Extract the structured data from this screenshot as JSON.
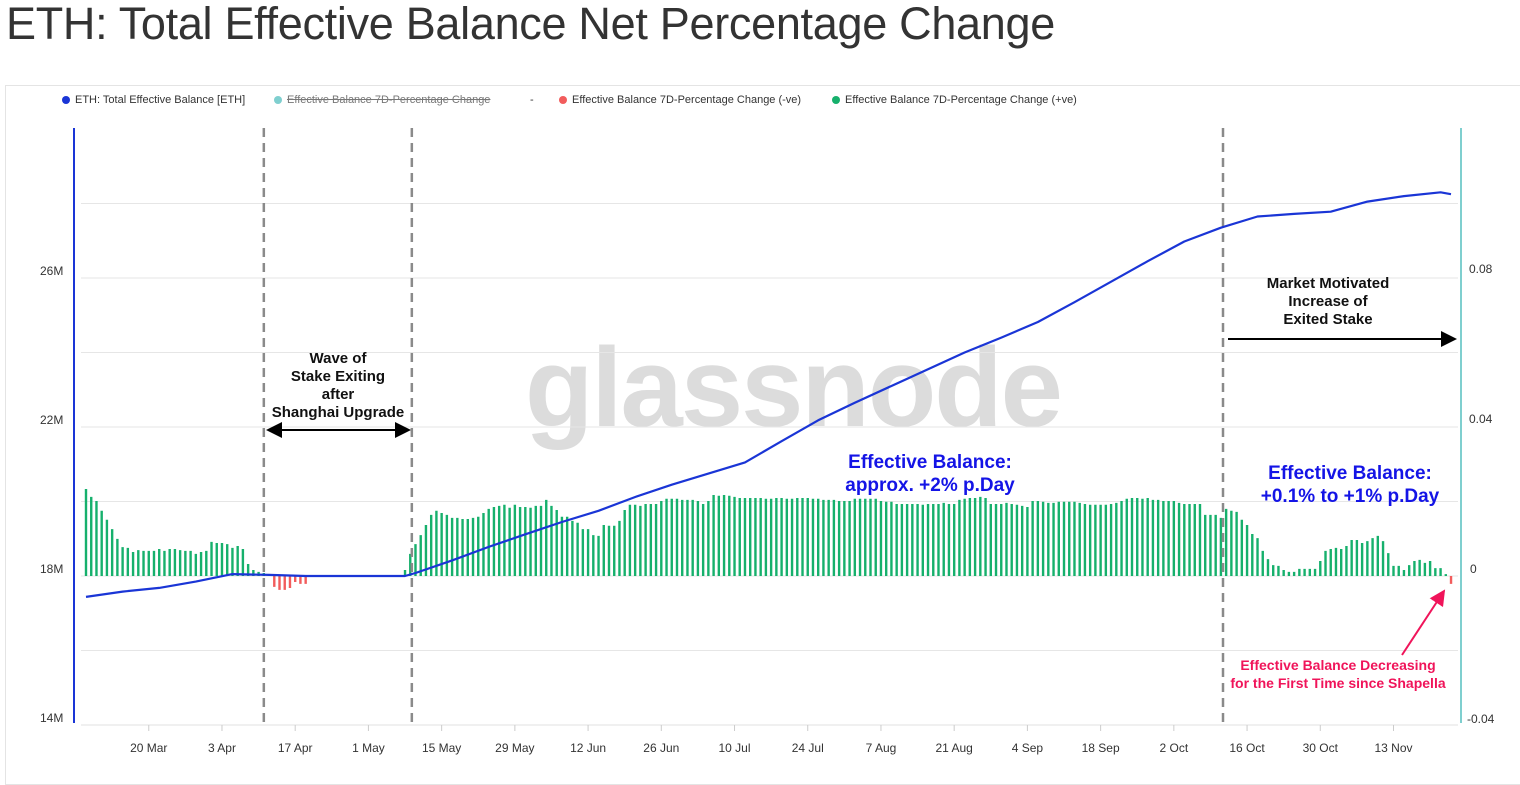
{
  "title": "ETH: Total Effective Balance Net Percentage Change",
  "watermark": "glassnode",
  "legend": [
    {
      "label": "ETH: Total Effective Balance [ETH]",
      "color": "#1a35d6",
      "hidden": false
    },
    {
      "label": "Effective Balance 7D-Percentage Change",
      "color": "#7fcfcf",
      "hidden": true
    },
    {
      "label": "-",
      "color": "",
      "hidden": false
    },
    {
      "label": "Effective Balance 7D-Percentage Change (-ve)",
      "color": "#f25c5c",
      "hidden": false
    },
    {
      "label": "Effective Balance 7D-Percentage Change (+ve)",
      "color": "#16b06c",
      "hidden": false
    }
  ],
  "annotations": {
    "shanghai": [
      "Wave of",
      "Stake Exiting",
      "after",
      "Shanghai Upgrade"
    ],
    "market": [
      "Market Motivated",
      "Increase of",
      "Exited Stake"
    ],
    "mid_blue": [
      "Effective Balance:",
      "approx. +2% p.Day"
    ],
    "right_blue": [
      "Effective Balance:",
      "+0.1% to +1% p.Day"
    ],
    "red": [
      "Effective Balance Decreasing",
      "for the First Time since Shapella"
    ]
  },
  "colors": {
    "line": "#1a35d6",
    "pos": "#16b06c",
    "neg": "#f25c5c",
    "left_axis": "#1a35d6",
    "right_axis": "#7fcfcf",
    "marker": "#8a8a8a"
  },
  "chart_data": {
    "type": "bar+line",
    "title": "ETH: Total Effective Balance Net Percentage Change",
    "x_start_date": "8 Mar",
    "x_unit": "day index since start",
    "x_ticks": [
      {
        "label": "20 Mar",
        "day": 12
      },
      {
        "label": "3 Apr",
        "day": 26
      },
      {
        "label": "17 Apr",
        "day": 40
      },
      {
        "label": "1 May",
        "day": 54
      },
      {
        "label": "15 May",
        "day": 68
      },
      {
        "label": "29 May",
        "day": 82
      },
      {
        "label": "12 Jun",
        "day": 96
      },
      {
        "label": "26 Jun",
        "day": 110
      },
      {
        "label": "10 Jul",
        "day": 124
      },
      {
        "label": "24 Jul",
        "day": 138
      },
      {
        "label": "7 Aug",
        "day": 152
      },
      {
        "label": "21 Aug",
        "day": 166
      },
      {
        "label": "4 Sep",
        "day": 180
      },
      {
        "label": "18 Sep",
        "day": 194
      },
      {
        "label": "2 Oct",
        "day": 208
      },
      {
        "label": "16 Oct",
        "day": 222
      },
      {
        "label": "30 Oct",
        "day": 236
      },
      {
        "label": "13 Nov",
        "day": 250
      }
    ],
    "left_axis": {
      "label": "ETH",
      "range": [
        14,
        30
      ],
      "unit": "M",
      "ticks": [
        "14M",
        "18M",
        "22M",
        "26M"
      ],
      "tick_values": [
        14,
        18,
        22,
        26
      ]
    },
    "right_axis": {
      "range": [
        -0.04,
        0.12
      ],
      "ticks": [
        "-0.04",
        "0",
        "0.04",
        "0.08"
      ],
      "tick_values": [
        -0.04,
        0,
        0.04,
        0.08
      ]
    },
    "vertical_markers_day": [
      34,
      62.3,
      217.4
    ],
    "balance_series": {
      "name": "ETH: Total Effective Balance [ETH]",
      "unit": "M ETH",
      "points": [
        [
          0,
          17.44
        ],
        [
          7,
          17.58
        ],
        [
          14,
          17.68
        ],
        [
          21,
          17.85
        ],
        [
          28,
          18.05
        ],
        [
          35,
          18.03
        ],
        [
          42,
          18.0
        ],
        [
          49,
          18.0
        ],
        [
          56,
          18.0
        ],
        [
          61,
          18.0
        ],
        [
          63,
          18.08
        ],
        [
          70,
          18.42
        ],
        [
          77,
          18.78
        ],
        [
          84,
          19.12
        ],
        [
          91,
          19.45
        ],
        [
          98,
          19.75
        ],
        [
          105,
          20.12
        ],
        [
          112,
          20.45
        ],
        [
          119,
          20.75
        ],
        [
          126,
          21.05
        ],
        [
          133,
          21.62
        ],
        [
          140,
          22.18
        ],
        [
          147,
          22.65
        ],
        [
          154,
          23.1
        ],
        [
          161,
          23.55
        ],
        [
          168,
          24.0
        ],
        [
          175,
          24.4
        ],
        [
          182,
          24.82
        ],
        [
          189,
          25.35
        ],
        [
          196,
          25.9
        ],
        [
          203,
          26.45
        ],
        [
          210,
          26.98
        ],
        [
          217,
          27.35
        ],
        [
          224,
          27.65
        ],
        [
          231,
          27.72
        ],
        [
          238,
          27.78
        ],
        [
          245,
          28.05
        ],
        [
          252,
          28.2
        ],
        [
          259,
          28.3
        ],
        [
          261,
          28.25
        ]
      ]
    },
    "pct_change_series": {
      "name": "Effective Balance 7D-Percentage Change",
      "values": [
        0.0232,
        0.0211,
        0.02,
        0.0174,
        0.015,
        0.0125,
        0.0099,
        0.0077,
        0.0075,
        0.0064,
        0.0069,
        0.0067,
        0.0067,
        0.0067,
        0.0072,
        0.0067,
        0.0072,
        0.0072,
        0.0069,
        0.0067,
        0.0067,
        0.0059,
        0.0064,
        0.0067,
        0.0091,
        0.0088,
        0.0088,
        0.0085,
        0.0075,
        0.008,
        0.0072,
        0.0032,
        0.0016,
        0.0011,
        0.0008,
        0.0005,
        -0.0029,
        -0.0037,
        -0.0037,
        -0.0032,
        -0.0016,
        -0.0021,
        -0.0021,
        0,
        0,
        0,
        0,
        0,
        0,
        0,
        0,
        0,
        0,
        0,
        0,
        0,
        0,
        0,
        0,
        0,
        0,
        0.0016,
        0.0059,
        0.0085,
        0.0109,
        0.0136,
        0.0163,
        0.0174,
        0.0168,
        0.0163,
        0.0155,
        0.0155,
        0.0152,
        0.0152,
        0.0155,
        0.0158,
        0.0168,
        0.0179,
        0.0184,
        0.0187,
        0.019,
        0.0182,
        0.019,
        0.0184,
        0.0184,
        0.0182,
        0.0187,
        0.0187,
        0.0203,
        0.0187,
        0.0176,
        0.0158,
        0.0158,
        0.0147,
        0.0142,
        0.0125,
        0.0125,
        0.0109,
        0.0107,
        0.0136,
        0.0134,
        0.0134,
        0.0147,
        0.0176,
        0.019,
        0.019,
        0.0187,
        0.0192,
        0.0192,
        0.0192,
        0.02,
        0.0206,
        0.0206,
        0.0206,
        0.0203,
        0.0203,
        0.0203,
        0.02,
        0.0192,
        0.02,
        0.0216,
        0.0214,
        0.0216,
        0.0214,
        0.0211,
        0.0208,
        0.0208,
        0.0208,
        0.0208,
        0.0208,
        0.0206,
        0.0206,
        0.0208,
        0.0208,
        0.0206,
        0.0206,
        0.0208,
        0.0208,
        0.0208,
        0.0206,
        0.0206,
        0.0203,
        0.0203,
        0.0203,
        0.02,
        0.02,
        0.02,
        0.0206,
        0.0206,
        0.0206,
        0.0206,
        0.0206,
        0.02,
        0.0198,
        0.0198,
        0.0192,
        0.0192,
        0.0192,
        0.0192,
        0.0192,
        0.019,
        0.0192,
        0.0192,
        0.0192,
        0.0195,
        0.0192,
        0.0192,
        0.0203,
        0.0206,
        0.0208,
        0.0208,
        0.0211,
        0.0208,
        0.0192,
        0.0192,
        0.0192,
        0.0195,
        0.0192,
        0.019,
        0.0187,
        0.0184,
        0.02,
        0.02,
        0.0198,
        0.0195,
        0.0195,
        0.0198,
        0.0198,
        0.0198,
        0.0198,
        0.0195,
        0.0192,
        0.019,
        0.019,
        0.019,
        0.019,
        0.0192,
        0.0195,
        0.02,
        0.0206,
        0.0208,
        0.0208,
        0.0206,
        0.0208,
        0.0203,
        0.0203,
        0.02,
        0.02,
        0.02,
        0.0195,
        0.0192,
        0.0192,
        0.0192,
        0.0192,
        0.0163,
        0.0163,
        0.0163,
        0.0155,
        0.0179,
        0.0174,
        0.0171,
        0.015,
        0.0136,
        0.0112,
        0.0101,
        0.0067,
        0.0045,
        0.0029,
        0.0027,
        0.0016,
        0.0011,
        0.0011,
        0.0019,
        0.0019,
        0.0019,
        0.0019,
        0.004,
        0.0067,
        0.0072,
        0.0075,
        0.0072,
        0.008,
        0.0096,
        0.0096,
        0.0088,
        0.0093,
        0.0101,
        0.0107,
        0.0093,
        0.0061,
        0.0027,
        0.0027,
        0.0016,
        0.0029,
        0.004,
        0.0043,
        0.0035,
        0.004,
        0.0021,
        0.0021,
        0.0005,
        -0.0021
      ]
    },
    "grid": true,
    "legend_position": "top-left"
  }
}
